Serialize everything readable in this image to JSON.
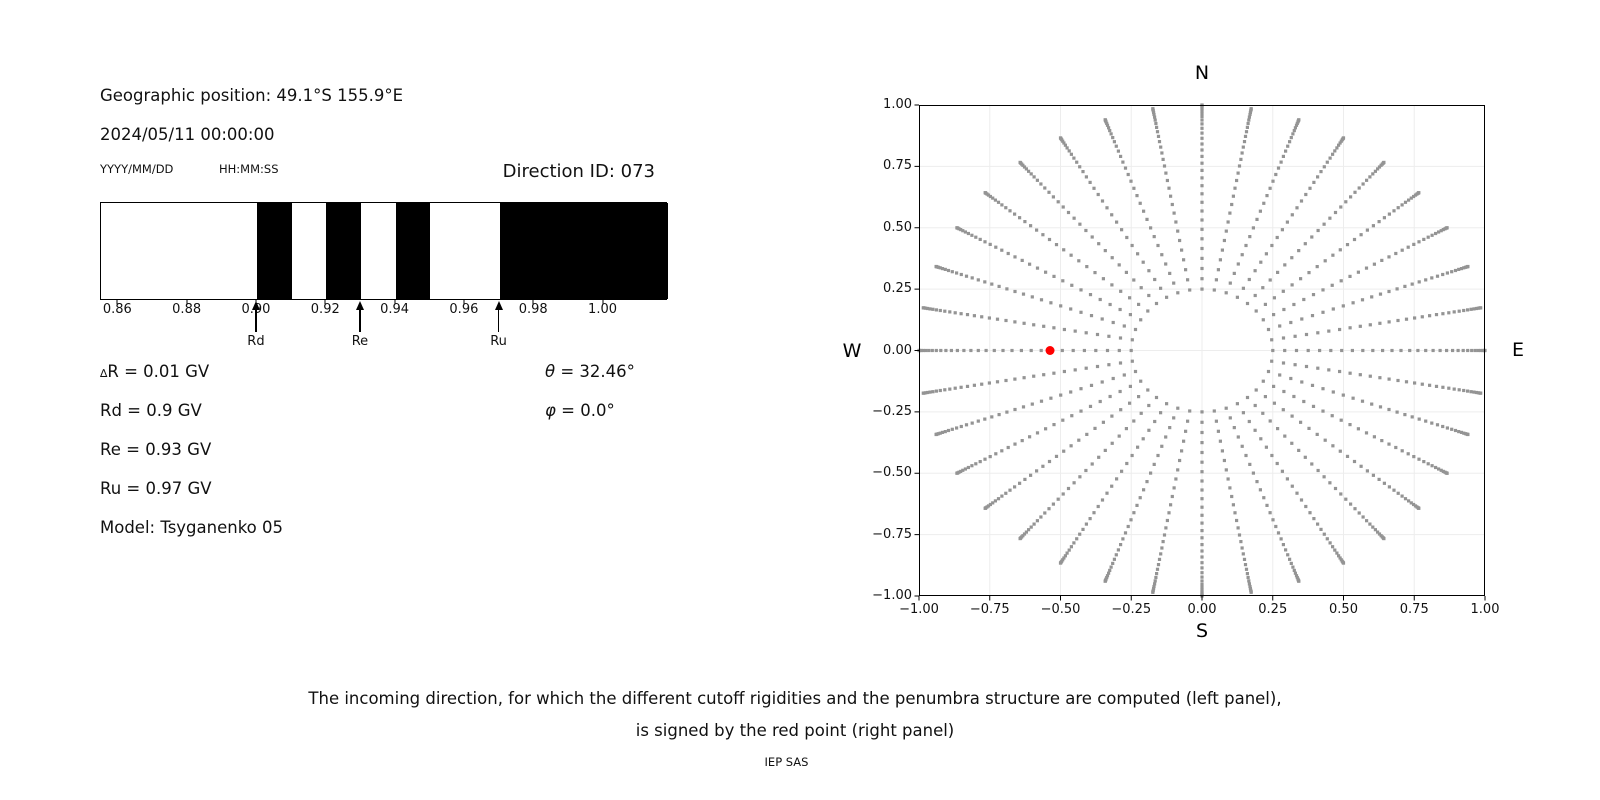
{
  "header": {
    "geo_position": "Geographic position: 49.1°S 155.9°E",
    "datetime": "2024/05/11 00:00:00",
    "date_format_hint": "YYYY/MM/DD",
    "time_format_hint": "HH:MM:SS",
    "direction_id": "Direction ID: 073"
  },
  "penumbra_panel": {
    "xlim": [
      0.855,
      1.0186
    ],
    "tick_values": [
      0.86,
      0.88,
      0.9,
      0.92,
      0.94,
      0.96,
      0.98,
      1.0
    ],
    "tick_labels": [
      "0.86",
      "0.88",
      "0.90",
      "0.92",
      "0.94",
      "0.96",
      "0.98",
      "1.00"
    ],
    "black_bands": [
      [
        0.9,
        0.91
      ],
      [
        0.92,
        0.93
      ],
      [
        0.94,
        0.95
      ],
      [
        0.97,
        1.0186
      ]
    ],
    "arrows": [
      {
        "value": 0.9,
        "label": "Rd"
      },
      {
        "value": 0.93,
        "label": "Re"
      },
      {
        "value": 0.97,
        "label": "Ru"
      }
    ],
    "bar_color": "#000000"
  },
  "parameters": {
    "delta_r": {
      "prefix": "∆",
      "text": "R = 0.01 GV"
    },
    "rd": "Rd = 0.9 GV",
    "re": "Re = 0.93 GV",
    "ru": "Ru = 0.97 GV",
    "model": "Model: Tsyganenko 05",
    "theta": {
      "symbol": "θ",
      "text": " = 32.46°"
    },
    "phi": {
      "symbol": "φ",
      "text": " = 0.0°"
    }
  },
  "chart_data": {
    "type": "scatter",
    "xlim": [
      -1,
      1
    ],
    "ylim": [
      -1,
      1
    ],
    "grid": true,
    "grid_color": "#ededed",
    "x_tick_values": [
      -1.0,
      -0.75,
      -0.5,
      -0.25,
      0.0,
      0.25,
      0.5,
      0.75,
      1.0
    ],
    "x_tick_labels": [
      "−1.00",
      "−0.75",
      "−0.50",
      "−0.25",
      "0.00",
      "0.25",
      "0.50",
      "0.75",
      "1.00"
    ],
    "y_tick_values": [
      -1.0,
      -0.75,
      -0.5,
      -0.25,
      0.0,
      0.25,
      0.5,
      0.75,
      1.0
    ],
    "y_tick_labels": [
      "−1.00",
      "−0.75",
      "−0.50",
      "−0.25",
      "0.00",
      "0.25",
      "0.50",
      "0.75",
      "1.00"
    ],
    "direction_labels": {
      "north": "N",
      "south": "S",
      "east": "E",
      "west": "W"
    },
    "series": [
      {
        "name": "computed-directions",
        "marker": "square",
        "marker_size_px": 3.2,
        "color": "#949494",
        "generator": {
          "radius_rule": "r = sin(zenith)",
          "azimuth_start_deg": 0,
          "azimuth_step_deg": 10,
          "azimuth_count": 36,
          "zenith_start_deg": 14.48,
          "zenith_end_deg": 90,
          "zenith_steps": 31
        }
      },
      {
        "name": "selected-direction",
        "marker": "circle",
        "marker_size_px": 9,
        "color": "#ff0000",
        "points": [
          {
            "x": -0.537,
            "y": 0.0,
            "theta_deg": 32.46,
            "phi_deg": 0.0
          }
        ]
      }
    ]
  },
  "caption": {
    "line1": "The incoming direction, for which the different cutoff rigidities and the penumbra structure are computed (left panel),",
    "line2": "is signed by the red point (right panel)",
    "credit": "IEP SAS"
  }
}
